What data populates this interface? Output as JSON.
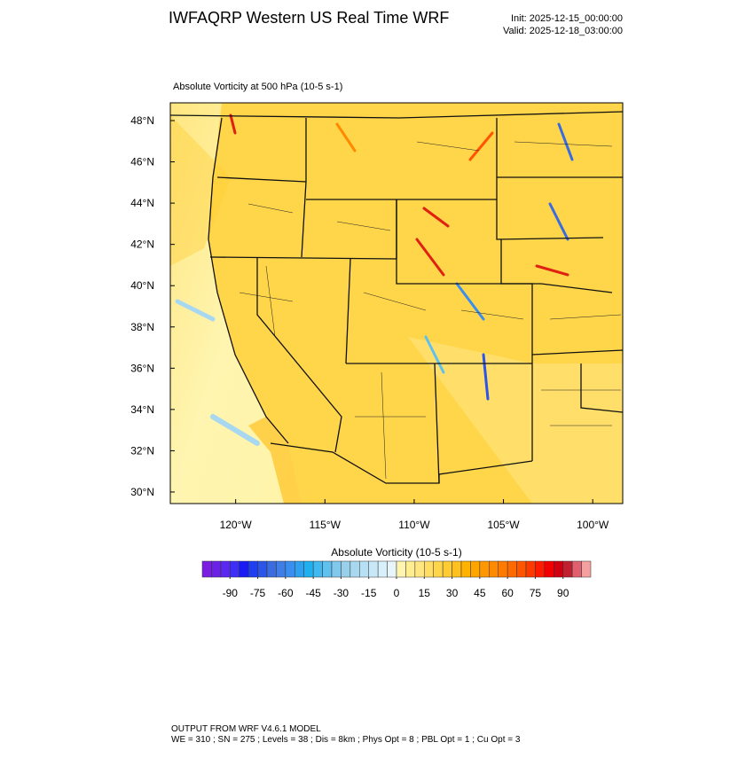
{
  "header": {
    "title": "IWFAQRP Western US Real Time WRF",
    "init": "Init: 2025-12-15_00:00:00",
    "valid": "Valid: 2025-12-18_03:00:00"
  },
  "map": {
    "title": "Absolute Vorticity at 500 hPa   (10-5 s-1)",
    "lonlim": [
      -123.66,
      -98.32
    ],
    "latlim": [
      29.44,
      48.86
    ],
    "lonticks": [
      {
        "value": -120,
        "label": "120°W"
      },
      {
        "value": -115,
        "label": "115°W"
      },
      {
        "value": -110,
        "label": "110°W"
      },
      {
        "value": -105,
        "label": "105°W"
      },
      {
        "value": -100,
        "label": "100°W"
      }
    ],
    "latticks": [
      {
        "value": 30,
        "label": "30°N"
      },
      {
        "value": 32,
        "label": "32°N"
      },
      {
        "value": 34,
        "label": "34°N"
      },
      {
        "value": 36,
        "label": "36°N"
      },
      {
        "value": 38,
        "label": "38°N"
      },
      {
        "value": 40,
        "label": "40°N"
      },
      {
        "value": 42,
        "label": "42°N"
      },
      {
        "value": 44,
        "label": "44°N"
      },
      {
        "value": 46,
        "label": "46°N"
      },
      {
        "value": 48,
        "label": "48°N"
      }
    ]
  },
  "colorbar": {
    "title": "Absolute Vorticity  (10-5 s-1)",
    "lim": [
      -105,
      105
    ],
    "colors": [
      "#7a1fe0",
      "#6a22e6",
      "#5a28ee",
      "#3d2ff5",
      "#1a1af5",
      "#1f3ff0",
      "#2a55e8",
      "#3a6ce0",
      "#3f7ee6",
      "#3a8ef0",
      "#2fa0f0",
      "#1fb0f0",
      "#40b8f0",
      "#60c0ee",
      "#80c8ec",
      "#98d0ec",
      "#a8d8f0",
      "#b8e0f4",
      "#c8e8f8",
      "#d8f0fa",
      "#e8f6fc",
      "#fff5b0",
      "#ffee90",
      "#ffe680",
      "#ffdd66",
      "#ffd54a",
      "#ffcc33",
      "#ffc020",
      "#ffb300",
      "#ffa500",
      "#ff9800",
      "#ff8a00",
      "#ff7a00",
      "#ff6a00",
      "#ff5500",
      "#ff3a00",
      "#ff1a00",
      "#f00000",
      "#d00010",
      "#c02030",
      "#e06070",
      "#f5a0a0"
    ],
    "ticks": [
      -90,
      -75,
      -60,
      -45,
      -30,
      -15,
      0,
      15,
      30,
      45,
      60,
      75,
      90
    ]
  },
  "footer": {
    "line1": "OUTPUT FROM WRF V4.6.1 MODEL",
    "line2": "WE = 310 ; SN = 275 ; Levels = 38 ; Dis = 8km ; Phys Opt = 8 ; PBL Opt = 1 ; Cu Opt = 3"
  }
}
